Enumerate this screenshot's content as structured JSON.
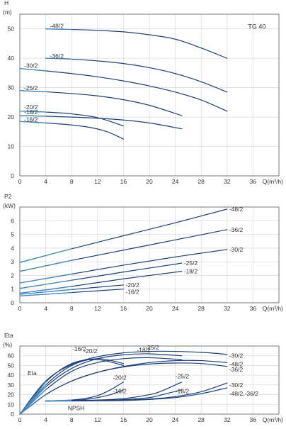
{
  "colors": {
    "curve_dark": "#1d3f7a",
    "curve_light": "#5bb6e6",
    "grid": "#d9d9d9",
    "frame": "#555555",
    "text": "#333333"
  },
  "chart_data": [
    {
      "type": "line",
      "tag": "TG 40",
      "ylabel": "H",
      "yunit": "(m)",
      "xlabel": "Q(m³/h)",
      "xlim": [
        0,
        40
      ],
      "ylim": [
        0,
        55
      ],
      "xticks": [
        "0",
        "4",
        "8",
        "12",
        "16",
        "20",
        "24",
        "28",
        "32",
        "36"
      ],
      "yticks": [
        "0",
        "10",
        "20",
        "30",
        "40",
        "50"
      ],
      "grid": true,
      "series": [
        {
          "name": "-48/2",
          "label_side": "left",
          "x": [
            4,
            8,
            12,
            16,
            20,
            24,
            28,
            32
          ],
          "y": [
            50,
            49.8,
            49.5,
            49,
            48,
            46.5,
            43.5,
            40
          ]
        },
        {
          "name": "-36/2",
          "label_side": "left",
          "x": [
            4,
            8,
            12,
            16,
            20,
            24,
            28,
            32
          ],
          "y": [
            40,
            39.7,
            39.1,
            38.2,
            36.8,
            34.8,
            32,
            28.5
          ]
        },
        {
          "name": "-30/2",
          "label_side": "left",
          "x": [
            0,
            4,
            8,
            12,
            16,
            20,
            24,
            28,
            32
          ],
          "y": [
            36.5,
            35.7,
            34.8,
            33.7,
            32.3,
            30.6,
            28.5,
            25.8,
            22
          ]
        },
        {
          "name": "-25/2",
          "label_side": "left",
          "x": [
            0,
            4,
            8,
            12,
            16,
            20,
            25
          ],
          "y": [
            29,
            28.6,
            28,
            27.2,
            25.9,
            24,
            20.5
          ]
        },
        {
          "name": "-20/2",
          "label_side": "left",
          "x": [
            0,
            4,
            8,
            12,
            16
          ],
          "y": [
            22,
            21.7,
            21.1,
            19.8,
            17
          ]
        },
        {
          "name": "-18/2",
          "label_side": "left",
          "x": [
            0,
            4,
            8,
            12,
            16,
            20,
            25
          ],
          "y": [
            20.5,
            20.3,
            20,
            19.6,
            19,
            18,
            16
          ]
        },
        {
          "name": "-16/2",
          "label_side": "left",
          "x": [
            0,
            4,
            8,
            11,
            13.5,
            16
          ],
          "y": [
            18.5,
            18,
            17.3,
            16.4,
            15,
            12.5
          ]
        }
      ]
    },
    {
      "type": "line",
      "ylabel": "P2",
      "yunit": "(kW)",
      "xlabel": "Q(m³/h)",
      "xlim": [
        0,
        40
      ],
      "ylim": [
        0,
        7
      ],
      "xticks": [
        "0",
        "4",
        "8",
        "12",
        "16",
        "20",
        "24",
        "28",
        "32",
        "36"
      ],
      "yticks": [
        "0",
        "1",
        "2",
        "3",
        "4",
        "5",
        "6"
      ],
      "grid": true,
      "series": [
        {
          "name": "-48/2",
          "label_side": "right",
          "x": [
            0,
            8,
            16,
            24,
            32
          ],
          "y": [
            2.95,
            3.95,
            4.9,
            5.85,
            6.85
          ]
        },
        {
          "name": "-36/2",
          "label_side": "right",
          "x": [
            0,
            8,
            16,
            24,
            32
          ],
          "y": [
            2.3,
            3.1,
            3.85,
            4.6,
            5.35
          ]
        },
        {
          "name": "-30/2",
          "label_side": "right",
          "x": [
            0,
            8,
            16,
            24,
            32
          ],
          "y": [
            1.45,
            2.1,
            2.75,
            3.35,
            3.9
          ]
        },
        {
          "name": "-25/2",
          "label_side": "right",
          "x": [
            0,
            8,
            16,
            25
          ],
          "y": [
            1.05,
            1.65,
            2.25,
            2.9
          ]
        },
        {
          "name": "-18/2",
          "label_side": "right",
          "x": [
            0,
            8,
            16,
            25
          ],
          "y": [
            0.7,
            1.2,
            1.75,
            2.3
          ]
        },
        {
          "name": "-20/2",
          "label_side": "right",
          "x": [
            0,
            8,
            16
          ],
          "y": [
            0.62,
            0.97,
            1.3
          ]
        },
        {
          "name": "-16/2",
          "label_side": "right",
          "x": [
            0,
            8,
            16
          ],
          "y": [
            0.5,
            0.75,
            1.0
          ]
        }
      ]
    },
    {
      "type": "line",
      "ylabel": "Eta",
      "yunit": "(%)",
      "xlabel": "Q(m³/h)",
      "xlim": [
        0,
        40
      ],
      "ylim": [
        0,
        70
      ],
      "xticks": [
        "0",
        "4",
        "8",
        "12",
        "16",
        "20",
        "24",
        "28",
        "32",
        "36"
      ],
      "yticks": [
        "0",
        "10",
        "20",
        "30",
        "40",
        "50",
        "60"
      ],
      "grid": true,
      "annotations": [
        "Eta",
        "NPSH"
      ],
      "series": [
        {
          "name": "-30/2",
          "label_side": "right",
          "x": [
            0,
            4,
            8,
            12,
            16,
            20,
            24,
            28,
            32
          ],
          "y": [
            0,
            34,
            51,
            59,
            63,
            64.5,
            64.5,
            63.5,
            61.5
          ]
        },
        {
          "name": "-48/2",
          "label_side": "right",
          "x": [
            0,
            4,
            8,
            12,
            16,
            20,
            24,
            28,
            32
          ],
          "y": [
            0,
            20,
            34,
            43,
            49,
            53,
            55,
            55,
            53
          ]
        },
        {
          "name": "-36/2",
          "label_side": "right",
          "x": [
            0,
            4,
            8,
            12,
            16,
            20,
            24,
            28,
            32
          ],
          "y": [
            0,
            20,
            34,
            43,
            48.5,
            51.5,
            52.5,
            52,
            49
          ]
        },
        {
          "name": "-25/2",
          "label_side": "top",
          "x": [
            0,
            4,
            8,
            12,
            16,
            20,
            25
          ],
          "y": [
            0,
            28,
            47,
            57,
            61,
            62,
            60
          ]
        },
        {
          "name": "-18/2",
          "label_side": "top",
          "x": [
            0,
            4,
            8,
            12,
            16,
            20,
            25
          ],
          "y": [
            0,
            25,
            44,
            53,
            57,
            58,
            56
          ]
        },
        {
          "name": "-20/2",
          "label_side": "top",
          "x": [
            0,
            4,
            8,
            12,
            16
          ],
          "y": [
            0,
            30,
            50,
            57,
            52
          ]
        },
        {
          "name": "-16/2",
          "label_side": "top",
          "x": [
            0,
            4,
            8,
            12,
            16
          ],
          "y": [
            0,
            33,
            52,
            56,
            50
          ]
        }
      ],
      "npsh_series": [
        {
          "name": "-30/2",
          "label_side": "right",
          "x": [
            4,
            8,
            12,
            16,
            20,
            24,
            28,
            32
          ],
          "y": [
            13.5,
            13.7,
            14,
            14.5,
            15.5,
            18,
            23,
            32
          ]
        },
        {
          "name": "-48/2,-36/2",
          "label_side": "right",
          "x": [
            4,
            8,
            12,
            16,
            20,
            24,
            28,
            32
          ],
          "y": [
            13.5,
            13.5,
            13.7,
            14,
            15,
            17,
            21,
            27
          ]
        },
        {
          "name": "-25/2",
          "label_side": "right",
          "x": [
            4,
            8,
            12,
            16,
            20,
            22,
            25
          ],
          "y": [
            13.5,
            14,
            14.5,
            16,
            20,
            24,
            33
          ]
        },
        {
          "name": "-18/2",
          "label_side": "right",
          "x": [
            4,
            8,
            12,
            16,
            20,
            22,
            25
          ],
          "y": [
            13.5,
            13.7,
            14,
            15,
            17,
            20,
            25
          ]
        },
        {
          "name": "-20/2",
          "label_side": "right",
          "x": [
            4,
            8,
            10,
            12,
            14,
            16
          ],
          "y": [
            13.5,
            14.5,
            16,
            19,
            25,
            33
          ]
        },
        {
          "name": "-16/2",
          "label_side": "right",
          "x": [
            4,
            8,
            10,
            12,
            14,
            16
          ],
          "y": [
            13.5,
            14,
            15,
            17,
            20,
            25
          ]
        }
      ]
    }
  ]
}
